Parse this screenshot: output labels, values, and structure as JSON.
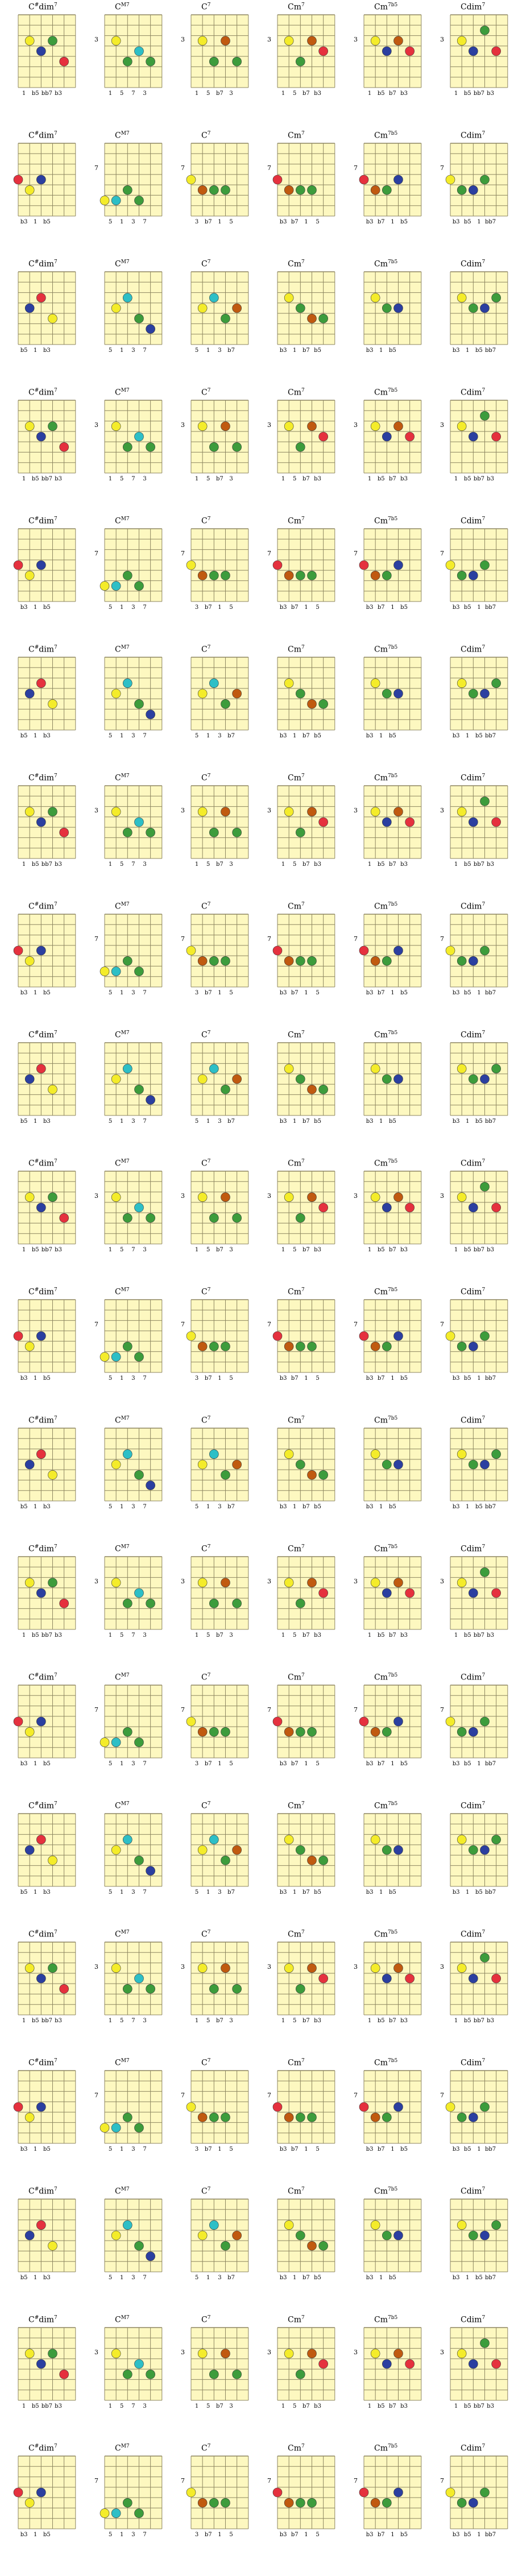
{
  "colors": {
    "board": "#fdf8c0",
    "line": "#8d8660",
    "root": "#f4ec2a",
    "third": "#3d9c3c",
    "flat_third": "#e5313e",
    "fifth": "#2b3fa0",
    "flat_fifth": "#2b3fa0",
    "seventh": "#c05a10",
    "major_seventh": "#2dbfc6",
    "dim_seventh": "#2bb3c0"
  },
  "chords": [
    "C#dim7",
    "C M7",
    "C 7",
    "C m7",
    "C m7b5",
    "C dim7"
  ],
  "chord_titles": [
    {
      "root": "C",
      "acc": "#",
      "q": "dim",
      "sup": "7"
    },
    {
      "root": "C",
      "acc": "",
      "q": "",
      "sup": "M7"
    },
    {
      "root": "C",
      "acc": "",
      "q": "",
      "sup": "7"
    },
    {
      "root": "C",
      "acc": "",
      "q": "m",
      "sup": "7"
    },
    {
      "root": "C",
      "acc": "",
      "q": "m",
      "sup": "7b5"
    },
    {
      "root": "C",
      "acc": "",
      "q": "dim",
      "sup": "7"
    }
  ],
  "rows": [
    {
      "frets": [
        "",
        "3",
        "3",
        "3",
        "3",
        "3"
      ],
      "cells": [
        {
          "labels": [
            "1",
            "b5",
            "bb7",
            "b3"
          ],
          "dots": [
            [
              1,
              3,
              "1",
              "root"
            ],
            [
              2,
              4,
              "b5",
              "fifth"
            ],
            [
              3,
              3,
              "bb7",
              "third"
            ],
            [
              4,
              5,
              "b3",
              "flat_third"
            ]
          ]
        },
        {
          "labels": [
            "1",
            "5",
            "7",
            "3"
          ],
          "dots": [
            [
              1,
              3,
              "1",
              "root"
            ],
            [
              2,
              5,
              "5",
              "third"
            ],
            [
              3,
              4,
              "7",
              "major_seventh"
            ],
            [
              4,
              5,
              "3",
              "third"
            ]
          ]
        },
        {
          "labels": [
            "1",
            "5",
            "b7",
            "3"
          ],
          "dots": [
            [
              1,
              3,
              "1",
              "root"
            ],
            [
              2,
              5,
              "5",
              "third"
            ],
            [
              3,
              3,
              "b7",
              "seventh"
            ],
            [
              4,
              5,
              "3",
              "third"
            ]
          ]
        },
        {
          "labels": [
            "1",
            "5",
            "b7",
            "b3"
          ],
          "dots": [
            [
              1,
              3,
              "1",
              "root"
            ],
            [
              2,
              5,
              "5",
              "third"
            ],
            [
              3,
              3,
              "b7",
              "seventh"
            ],
            [
              4,
              4,
              "b3",
              "flat_third"
            ]
          ]
        },
        {
          "labels": [
            "1",
            "b5",
            "b7",
            "b3"
          ],
          "dots": [
            [
              1,
              3,
              "1",
              "root"
            ],
            [
              2,
              4,
              "b5",
              "fifth"
            ],
            [
              3,
              3,
              "b7",
              "seventh"
            ],
            [
              4,
              4,
              "b3",
              "flat_third"
            ]
          ]
        },
        {
          "labels": [
            "1",
            "b5",
            "bb7",
            "b3"
          ],
          "dots": [
            [
              1,
              3,
              "1",
              "root"
            ],
            [
              2,
              4,
              "b5",
              "fifth"
            ],
            [
              3,
              2,
              "bb7",
              "third"
            ],
            [
              4,
              4,
              "b3",
              "flat_third"
            ]
          ]
        }
      ]
    },
    {
      "frets": [
        "",
        "7",
        "7",
        "7",
        "7",
        "7"
      ],
      "cells": [
        {
          "labels": [
            "b3",
            "1",
            "b5"
          ],
          "dots": [
            [
              0,
              4,
              "b3",
              "flat_third"
            ],
            [
              1,
              5,
              "1",
              "root"
            ],
            [
              2,
              4,
              "b5",
              "fifth"
            ]
          ]
        },
        {
          "labels": [
            "5",
            "1",
            "3",
            "7"
          ],
          "dots": [
            [
              0,
              6,
              "5",
              "root"
            ],
            [
              1,
              6,
              "1",
              "major_seventh"
            ],
            [
              2,
              5,
              "3",
              "third"
            ],
            [
              3,
              6,
              "7",
              "third"
            ]
          ]
        },
        {
          "labels": [
            "3",
            "b7",
            "1",
            "5"
          ],
          "dots": [
            [
              0,
              4,
              "3",
              "root"
            ],
            [
              1,
              5,
              "b7",
              "seventh"
            ],
            [
              2,
              5,
              "1",
              "third"
            ],
            [
              3,
              5,
              "5",
              "third"
            ]
          ]
        },
        {
          "labels": [
            "b3",
            "b7",
            "1",
            "5"
          ],
          "dots": [
            [
              0,
              4,
              "b3",
              "flat_third"
            ],
            [
              1,
              5,
              "b7",
              "seventh"
            ],
            [
              2,
              5,
              "1",
              "third"
            ],
            [
              3,
              5,
              "5",
              "third"
            ]
          ]
        },
        {
          "labels": [
            "b3",
            "b7",
            "1",
            "b5"
          ],
          "dots": [
            [
              0,
              4,
              "b3",
              "flat_third"
            ],
            [
              1,
              5,
              "b7",
              "seventh"
            ],
            [
              2,
              5,
              "1",
              "third"
            ],
            [
              3,
              4,
              "b5",
              "fifth"
            ]
          ]
        },
        {
          "labels": [
            "b3",
            "b5",
            "1",
            "bb7"
          ],
          "dots": [
            [
              0,
              4,
              "b3",
              "root"
            ],
            [
              1,
              5,
              "b5",
              "third"
            ],
            [
              2,
              5,
              "1",
              "fifth"
            ],
            [
              3,
              4,
              "bb7",
              "third"
            ]
          ]
        }
      ]
    },
    {
      "frets": [
        "",
        "",
        "",
        "",
        "",
        ""
      ],
      "cells": [
        {
          "labels": [
            "b5",
            "1",
            "b3"
          ],
          "dots": [
            [
              1,
              4,
              "b5",
              "fifth"
            ],
            [
              2,
              3,
              "1",
              "flat_third"
            ],
            [
              3,
              5,
              "b3",
              "root"
            ]
          ]
        },
        {
          "labels": [
            "5",
            "1",
            "3",
            "7"
          ],
          "dots": [
            [
              1,
              4,
              "5",
              "root"
            ],
            [
              2,
              3,
              "1",
              "major_seventh"
            ],
            [
              3,
              5,
              "3",
              "third"
            ],
            [
              4,
              6,
              "7",
              "fifth"
            ]
          ]
        },
        {
          "labels": [
            "5",
            "1",
            "3",
            "b7"
          ],
          "dots": [
            [
              1,
              4,
              "5",
              "root"
            ],
            [
              2,
              3,
              "1",
              "major_seventh"
            ],
            [
              3,
              5,
              "3",
              "third"
            ],
            [
              4,
              4,
              "b7",
              "seventh"
            ]
          ]
        },
        {
          "labels": [
            "b3",
            "1",
            "b7",
            "b5"
          ],
          "dots": [
            [
              1,
              3,
              "b3",
              "root"
            ],
            [
              2,
              4,
              "1",
              "third"
            ],
            [
              3,
              5,
              "b7",
              "seventh"
            ],
            [
              4,
              5,
              "b5",
              "third"
            ]
          ]
        },
        {
          "labels": [
            "b3",
            "1",
            "b5"
          ],
          "dots": [
            [
              1,
              3,
              "b3",
              "root"
            ],
            [
              2,
              4,
              "1",
              "third"
            ],
            [
              3,
              4,
              "b5",
              "fifth"
            ]
          ]
        },
        {
          "labels": [
            "b3",
            "1",
            "b5",
            "bb7"
          ],
          "dots": [
            [
              1,
              3,
              "b3",
              "root"
            ],
            [
              2,
              4,
              "1",
              "third"
            ],
            [
              3,
              4,
              "b5",
              "fifth"
            ],
            [
              4,
              3,
              "bb7",
              "third"
            ]
          ]
        }
      ]
    }
  ],
  "row_count": 20
}
